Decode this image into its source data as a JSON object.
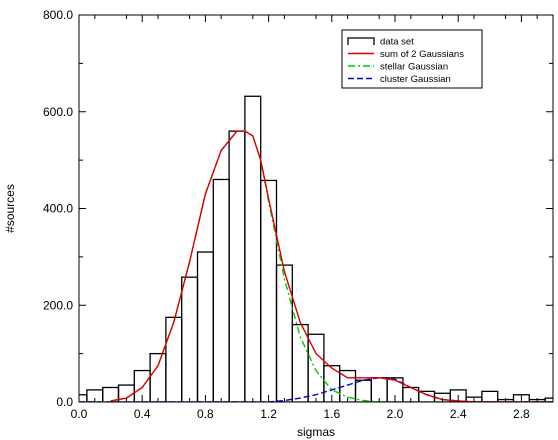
{
  "chart_data": {
    "type": "bar",
    "xlabel": "sigmas",
    "ylabel": "#sources",
    "xlim": [
      0.0,
      3.0
    ],
    "ylim": [
      0.0,
      800.0
    ],
    "xticks": [
      0.0,
      0.4,
      0.8,
      1.2,
      1.6,
      2.0,
      2.4,
      2.8
    ],
    "xtick_labels": [
      "0.0",
      "0.4",
      "0.8",
      "1.2",
      "1.6",
      "2.0",
      "2.4",
      "2.8"
    ],
    "yticks": [
      0,
      200,
      400,
      600,
      800
    ],
    "ytick_labels": [
      "0.0",
      "200.0",
      "400.0",
      "600.0",
      "800.0"
    ],
    "bin_width": 0.1,
    "histogram": {
      "name": "data set",
      "color": "#000000",
      "bin_centers": [
        0.0,
        0.1,
        0.2,
        0.3,
        0.4,
        0.5,
        0.6,
        0.7,
        0.8,
        0.9,
        1.0,
        1.1,
        1.2,
        1.3,
        1.4,
        1.5,
        1.6,
        1.7,
        1.8,
        1.9,
        2.0,
        2.1,
        2.2,
        2.3,
        2.4,
        2.5,
        2.6,
        2.7,
        2.8,
        2.9,
        3.0
      ],
      "values": [
        15,
        25,
        30,
        35,
        65,
        100,
        175,
        258,
        310,
        460,
        560,
        632,
        458,
        283,
        160,
        140,
        75,
        65,
        45,
        50,
        50,
        30,
        22,
        18,
        25,
        10,
        22,
        5,
        15,
        5,
        8
      ]
    },
    "series": [
      {
        "name": "sum of 2 Gaussians",
        "color": "#dd0000",
        "style": "solid",
        "x": [
          0.2,
          0.3,
          0.4,
          0.5,
          0.6,
          0.7,
          0.8,
          0.9,
          1.0,
          1.05,
          1.1,
          1.15,
          1.2,
          1.3,
          1.4,
          1.5,
          1.6,
          1.7,
          1.8,
          1.9,
          2.0,
          2.1,
          2.2,
          2.3,
          2.4,
          2.5,
          2.6,
          2.7,
          2.8,
          2.9,
          3.0
        ],
        "y": [
          2,
          8,
          30,
          75,
          165,
          290,
          430,
          520,
          560,
          560,
          550,
          500,
          420,
          270,
          165,
          100,
          70,
          50,
          50,
          50,
          45,
          30,
          15,
          5,
          2,
          0,
          0,
          0,
          0,
          0,
          0
        ]
      },
      {
        "name": "stellar Gaussian",
        "color": "#00cc00",
        "style": "dash-dot",
        "x": [
          0.2,
          0.3,
          0.4,
          0.5,
          0.6,
          0.7,
          0.8,
          0.9,
          1.0,
          1.05,
          1.1,
          1.15,
          1.2,
          1.3,
          1.4,
          1.5,
          1.6,
          1.7,
          1.8,
          1.9,
          2.0,
          2.2,
          2.4,
          2.6,
          2.8,
          3.0
        ],
        "y": [
          2,
          8,
          30,
          75,
          165,
          290,
          430,
          520,
          560,
          560,
          550,
          500,
          415,
          255,
          135,
          65,
          25,
          10,
          3,
          0,
          0,
          0,
          0,
          0,
          0,
          0
        ]
      },
      {
        "name": "cluster Gaussian",
        "color": "#0000cc",
        "style": "dashed",
        "x": [
          0.0,
          1.2,
          1.3,
          1.4,
          1.5,
          1.6,
          1.7,
          1.8,
          1.9,
          2.0,
          2.1,
          2.2,
          2.3,
          2.4,
          2.5,
          2.6,
          3.0
        ],
        "y": [
          0,
          0,
          3,
          8,
          15,
          25,
          35,
          45,
          50,
          47,
          30,
          15,
          5,
          2,
          0,
          0,
          0
        ]
      }
    ],
    "legend": {
      "placement": "top-right",
      "entries": [
        {
          "label": "data set",
          "symbol": "histogram-step"
        },
        {
          "label": "sum of 2 Gaussians",
          "symbol": "solid-red"
        },
        {
          "label": "stellar Gaussian",
          "symbol": "dash-dot-green"
        },
        {
          "label": "cluster Gaussian",
          "symbol": "dashed-blue"
        }
      ]
    },
    "grid": false
  }
}
